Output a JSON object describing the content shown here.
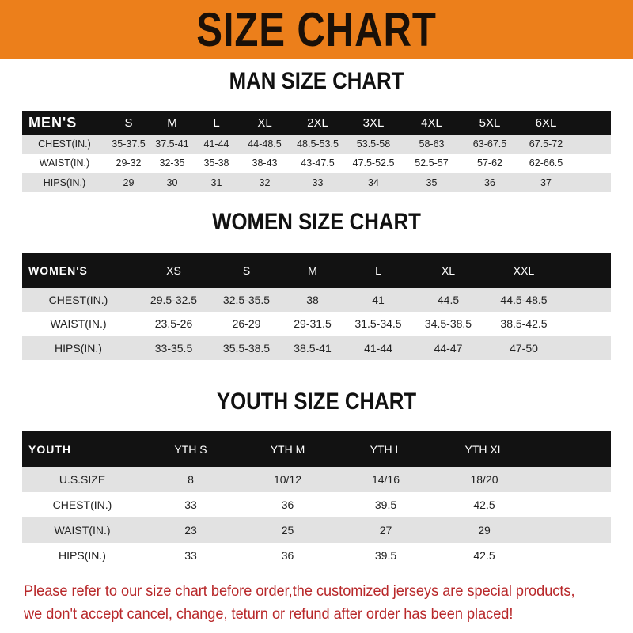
{
  "title": "SIZE CHART",
  "men": {
    "title": "MAN SIZE CHART",
    "header": "MEN'S",
    "sizes": [
      "S",
      "M",
      "L",
      "XL",
      "2XL",
      "3XL",
      "4XL",
      "5XL",
      "6XL"
    ],
    "rows": [
      {
        "label": "CHEST(IN.)",
        "values": [
          "35-37.5",
          "37.5-41",
          "41-44",
          "44-48.5",
          "48.5-53.5",
          "53.5-58",
          "58-63",
          "63-67.5",
          "67.5-72"
        ]
      },
      {
        "label": "WAIST(IN.)",
        "values": [
          "29-32",
          "32-35",
          "35-38",
          "38-43",
          "43-47.5",
          "47.5-52.5",
          "52.5-57",
          "57-62",
          "62-66.5"
        ]
      },
      {
        "label": "HIPS(IN.)",
        "values": [
          "29",
          "30",
          "31",
          "32",
          "33",
          "34",
          "35",
          "36",
          "37"
        ]
      }
    ]
  },
  "women": {
    "title": "WOMEN SIZE CHART",
    "header": "WOMEN'S",
    "sizes": [
      "XS",
      "S",
      "M",
      "L",
      "XL",
      "XXL"
    ],
    "rows": [
      {
        "label": "CHEST(IN.)",
        "values": [
          "29.5-32.5",
          "32.5-35.5",
          "38",
          "41",
          "44.5",
          "44.5-48.5"
        ]
      },
      {
        "label": "WAIST(IN.)",
        "values": [
          "23.5-26",
          "26-29",
          "29-31.5",
          "31.5-34.5",
          "34.5-38.5",
          "38.5-42.5"
        ]
      },
      {
        "label": "HIPS(IN.)",
        "values": [
          "33-35.5",
          "35.5-38.5",
          "38.5-41",
          "41-44",
          "44-47",
          "47-50"
        ]
      }
    ]
  },
  "youth": {
    "title": "YOUTH SIZE CHART",
    "header": "YOUTH",
    "sizes": [
      "YTH S",
      "YTH M",
      "YTH L",
      "YTH XL"
    ],
    "rows": [
      {
        "label": "U.S.SIZE",
        "values": [
          "8",
          "10/12",
          "14/16",
          "18/20"
        ]
      },
      {
        "label": "CHEST(IN.)",
        "values": [
          "33",
          "36",
          "39.5",
          "42.5"
        ]
      },
      {
        "label": "WAIST(IN.)",
        "values": [
          "23",
          "25",
          "27",
          "29"
        ]
      },
      {
        "label": "HIPS(IN.)",
        "values": [
          "33",
          "36",
          "39.5",
          "42.5"
        ]
      }
    ]
  },
  "note": [
    "Please refer to our size chart before order,the customized jerseys are special products,",
    "we don't accept cancel, change, teturn or refund after order has been placed!"
  ],
  "colors": {
    "banner": "#ec7f1b",
    "header_row": "#121212",
    "stripe": "#e2e2e2",
    "note": "#b8282a"
  }
}
